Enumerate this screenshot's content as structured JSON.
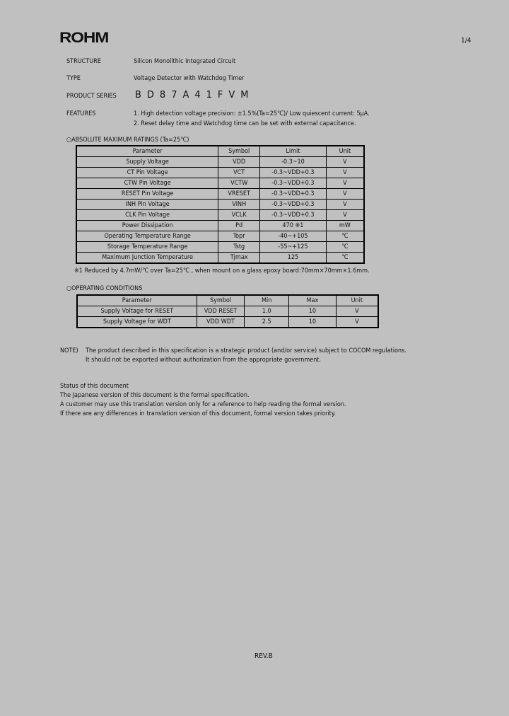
{
  "header": {
    "logo": "ROHM",
    "page": "1/4"
  },
  "fields": [
    {
      "label": "STRUCTURE",
      "value": "Silicon Monolithic Integrated Circuit"
    },
    {
      "label": "TYPE",
      "value": "Voltage Detector with Watchdog Timer"
    },
    {
      "label": "PRODUCT SERIES",
      "value": "BD87A41FVM"
    },
    {
      "label": "FEATURES",
      "value": "1. High detection voltage precision: ±1.5%(Ta=25℃)/ Low quiescent current: 5μA.",
      "value2": "2. Reset delay time and Watchdog time can be set with external capacitance."
    }
  ],
  "abs_max": {
    "title": "○ABSOLUTE MAXIMUM RATINGS (Ta=25℃)",
    "headers": [
      "Parameter",
      "Symbol",
      "Limit",
      "Unit"
    ],
    "rows": [
      [
        "Supply Voltage",
        "VDD",
        "-0.3~10",
        "V"
      ],
      [
        "CT Pin Voltage",
        "VCT",
        "-0.3~VDD+0.3",
        "V"
      ],
      [
        "CTW Pin Voltage",
        "VCTW",
        "-0.3~VDD+0.3",
        "V"
      ],
      [
        "RESET Pin Voltage",
        "VRESET",
        "-0.3~VDD+0.3",
        "V"
      ],
      [
        "INH Pin Voltage",
        "VINH",
        "-0.3~VDD+0.3",
        "V"
      ],
      [
        "CLK Pin Voltage",
        "VCLK",
        "-0.3~VDD+0.3",
        "V"
      ],
      [
        "Power Dissipation",
        "Pd",
        "470 ※1",
        "mW"
      ],
      [
        "Operating Temperature Range",
        "Topr",
        "-40~+105",
        "℃"
      ],
      [
        "Storage Temperature Range",
        "Tstg",
        "-55~+125",
        "℃"
      ],
      [
        "Maximum Junction Temperature",
        "Tjmax",
        "125",
        "℃"
      ]
    ],
    "footnote": "※1 Reduced by 4.7mW/℃ over Ta=25℃ , when mount on a glass epoxy board:70mm×70mm×1.6mm."
  },
  "op_cond": {
    "title": "○OPERATING CONDITIONS",
    "headers": [
      "Parameter",
      "Symbol",
      "Min",
      "Max",
      "Unit"
    ],
    "rows": [
      [
        "Supply Voltage for RESET",
        "VDD RESET",
        "1.0",
        "10",
        "V"
      ],
      [
        "Supply Voltage for WDT",
        "VDD WDT",
        "2.5",
        "10",
        "V"
      ]
    ]
  },
  "note": {
    "label": "NOTE)",
    "line1": "The product described in this specification is a strategic product (and/or service) subject to COCOM regulations.",
    "line2": "It should not be exported without authorization from the appropriate government."
  },
  "status": {
    "title": "Status of this document",
    "lines": [
      "The Japanese version of this document is the formal specification.",
      "A customer may use this translation version only for a reference to help reading the formal version.",
      "If there are any differences in translation version of this document, formal version takes priority."
    ]
  },
  "footer": {
    "rev": "REV.B"
  }
}
